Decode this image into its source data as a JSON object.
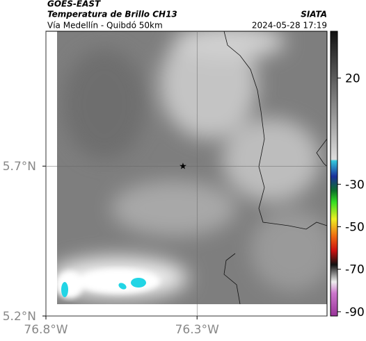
{
  "header": {
    "source": "GOES-EAST",
    "product": "Temperatura de Brillo CH13",
    "org": "SIATA",
    "region": "Vía Medellín - Quibdó 50km",
    "timestamp": "2024-05-28 17:19"
  },
  "map": {
    "lat_lim": [
      5.2,
      6.15
    ],
    "lon_lim": [
      -76.8,
      -75.87
    ],
    "lat_ticks": [
      {
        "value": 5.7,
        "label": "5.7°N"
      },
      {
        "value": 5.2,
        "label": "5.2°N"
      }
    ],
    "lon_ticks": [
      {
        "value": -76.8,
        "label": "76.8°W"
      },
      {
        "value": -76.3,
        "label": "76.3°W"
      }
    ],
    "colorbar": {
      "clim": [
        -92,
        42
      ],
      "ticks": [
        20,
        -30,
        -50,
        -70,
        -90
      ]
    }
  }
}
